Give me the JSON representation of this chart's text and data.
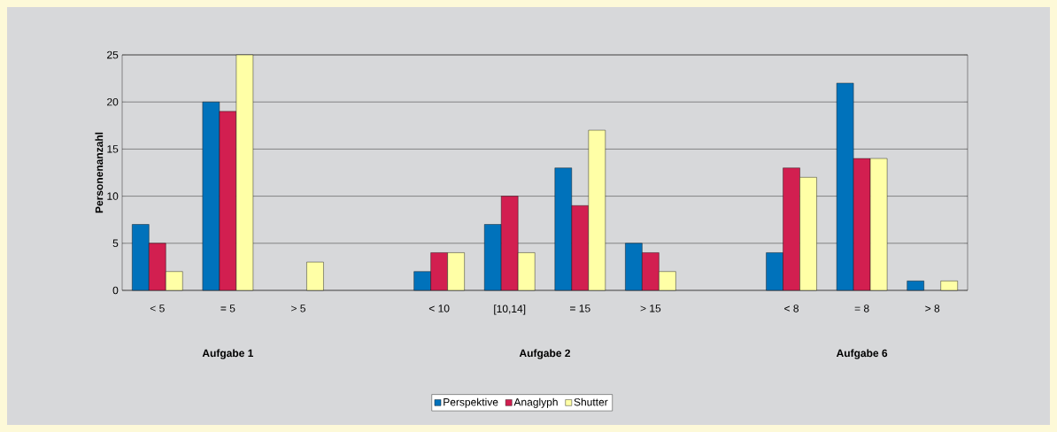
{
  "chart_data": {
    "type": "bar",
    "ylabel": "Personenanzahl",
    "categories": [
      "< 5",
      "= 5",
      "> 5",
      null,
      "< 10",
      "[10,14]",
      "= 15",
      "> 15",
      null,
      "< 8",
      "= 8",
      "> 8"
    ],
    "series": [
      {
        "name": "Perspektive",
        "color": "#0072bb",
        "values": [
          7,
          20,
          null,
          null,
          2,
          7,
          13,
          5,
          null,
          4,
          22,
          1
        ]
      },
      {
        "name": "Anaglyph",
        "color": "#d21f50",
        "values": [
          5,
          19,
          null,
          null,
          4,
          10,
          9,
          4,
          null,
          13,
          14,
          null
        ]
      },
      {
        "name": "Shutter",
        "color": "#ffffa6",
        "values": [
          2,
          25,
          3,
          null,
          4,
          4,
          17,
          2,
          null,
          12,
          14,
          1
        ]
      }
    ],
    "annotations": [
      "Aufgabe 1",
      "Aufgabe 2",
      "Aufgabe 6"
    ],
    "ylim": [
      0,
      25
    ],
    "yticks": [
      0,
      5,
      10,
      15,
      20,
      25
    ],
    "grid": "y",
    "legend": "bottom"
  }
}
